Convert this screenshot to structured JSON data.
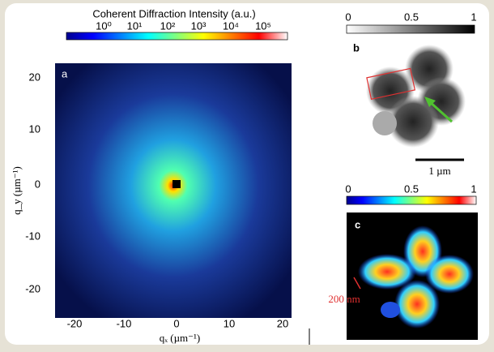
{
  "panel_a": {
    "title": "Coherent Diffraction Intensity (a.u.)",
    "label": "a",
    "colorbar_labels": [
      "10⁰",
      "10¹",
      "10²",
      "10³",
      "10⁴",
      "10⁵"
    ],
    "yticks": [
      "20",
      "10",
      "0",
      "-10",
      "-20"
    ],
    "xticks": [
      "-20",
      "-10",
      "0",
      "10",
      "20"
    ],
    "xlabel": "qₓ (µm⁻¹)",
    "ylabel": "q_y (µm⁻¹)"
  },
  "panel_b": {
    "label": "b",
    "colorbar_labels": [
      "0",
      "0.5",
      "1"
    ],
    "scale_bar": "1 µm"
  },
  "panel_c": {
    "label": "c",
    "colorbar_labels": [
      "0",
      "0.5",
      "1"
    ],
    "annotation": "200 nm"
  }
}
